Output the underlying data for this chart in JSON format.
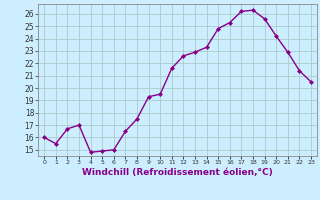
{
  "x": [
    0,
    1,
    2,
    3,
    4,
    5,
    6,
    7,
    8,
    9,
    10,
    11,
    12,
    13,
    14,
    15,
    16,
    17,
    18,
    19,
    20,
    21,
    22,
    23
  ],
  "y": [
    16,
    15.5,
    16.7,
    17,
    14.8,
    14.9,
    15,
    16.5,
    17.5,
    19.3,
    19.5,
    21.6,
    22.6,
    22.9,
    23.3,
    24.8,
    25.3,
    26.2,
    26.3,
    25.6,
    24.2,
    22.9,
    21.4,
    20.5
  ],
  "line_color": "#880088",
  "marker": "D",
  "marker_size": 2,
  "line_width": 1.0,
  "bg_color": "#cceeff",
  "grid_color": "#aacccc",
  "xlabel": "Windchill (Refroidissement éolien,°C)",
  "xlabel_color": "#880088",
  "xlabel_fontsize": 6.5,
  "yticks": [
    15,
    16,
    17,
    18,
    19,
    20,
    21,
    22,
    23,
    24,
    25,
    26
  ],
  "xtick_labels": [
    "0",
    "1",
    "2",
    "3",
    "4",
    "5",
    "6",
    "7",
    "8",
    "9",
    "10",
    "11",
    "12",
    "13",
    "14",
    "15",
    "16",
    "17",
    "18",
    "19",
    "20",
    "21",
    "22",
    "23"
  ],
  "ylim": [
    14.5,
    26.8
  ],
  "xlim": [
    -0.5,
    23.5
  ]
}
